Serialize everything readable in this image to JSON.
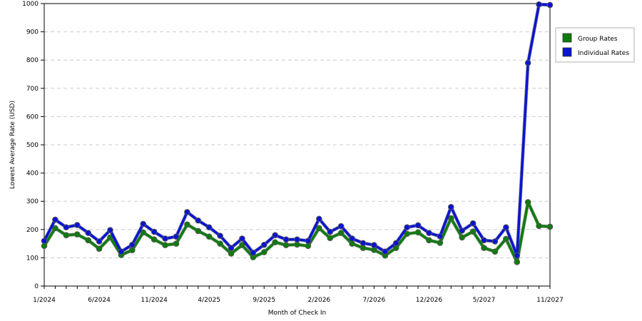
{
  "chart_data": {
    "type": "line",
    "title": "",
    "xlabel": "Month of Check In",
    "ylabel": "Lowest Average Rate (USD)",
    "ylim": [
      0,
      1000
    ],
    "yticks": [
      0,
      100,
      200,
      300,
      400,
      500,
      600,
      700,
      800,
      900,
      1000
    ],
    "grid": true,
    "legend_position": "right",
    "x_tick_labels": [
      "1/2024",
      "6/2024",
      "11/2024",
      "4/2025",
      "9/2025",
      "2/2026",
      "7/2026",
      "12/2026",
      "5/2027",
      "11/2027"
    ],
    "x_tick_indices": [
      0,
      5,
      10,
      15,
      20,
      25,
      30,
      35,
      40,
      46
    ],
    "x": [
      "1/2024",
      "2/2024",
      "3/2024",
      "4/2024",
      "5/2024",
      "6/2024",
      "7/2024",
      "8/2024",
      "9/2024",
      "10/2024",
      "11/2024",
      "12/2024",
      "1/2025",
      "2/2025",
      "3/2025",
      "4/2025",
      "5/2025",
      "6/2025",
      "7/2025",
      "8/2025",
      "9/2025",
      "10/2025",
      "11/2025",
      "12/2025",
      "1/2026",
      "2/2026",
      "3/2026",
      "4/2026",
      "5/2026",
      "6/2026",
      "7/2026",
      "8/2026",
      "9/2026",
      "10/2026",
      "11/2026",
      "12/2026",
      "1/2027",
      "2/2027",
      "3/2027",
      "4/2027",
      "5/2027",
      "6/2027",
      "7/2027",
      "8/2027",
      "9/2027",
      "10/2027",
      "11/2027"
    ],
    "series": [
      {
        "name": "Group Rates",
        "color": "#0b7d0b",
        "values": [
          142,
          205,
          180,
          183,
          162,
          132,
          172,
          110,
          127,
          190,
          165,
          145,
          150,
          218,
          195,
          175,
          150,
          115,
          145,
          102,
          120,
          155,
          145,
          147,
          142,
          205,
          170,
          188,
          150,
          135,
          128,
          108,
          135,
          185,
          190,
          162,
          153,
          240,
          172,
          193,
          135,
          122,
          167,
          85,
          297,
          213,
          210
        ]
      },
      {
        "name": "Individual Rates",
        "color": "#0a14d2",
        "values": [
          160,
          235,
          208,
          216,
          188,
          158,
          198,
          122,
          146,
          220,
          192,
          168,
          175,
          262,
          232,
          208,
          178,
          135,
          168,
          118,
          146,
          180,
          165,
          165,
          160,
          238,
          192,
          212,
          168,
          152,
          145,
          122,
          152,
          208,
          215,
          188,
          176,
          280,
          196,
          222,
          162,
          158,
          208,
          108,
          790,
          997,
          995
        ]
      }
    ]
  }
}
